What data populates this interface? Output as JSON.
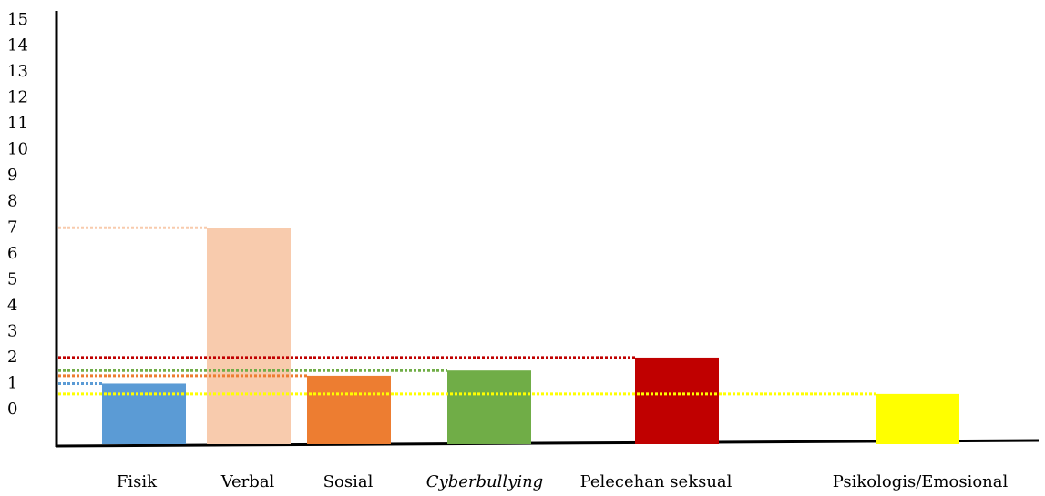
{
  "chart_data": {
    "type": "bar",
    "categories": [
      "Fisik",
      "Verbal",
      "Sosial",
      "Cyberbullying",
      "Pelecehan seksual",
      "Psikologis/Emosional"
    ],
    "values": [
      1,
      7,
      1.3,
      1.5,
      2,
      0.6
    ],
    "colors": [
      "#5b9bd5",
      "#f8cbad",
      "#ed7d31",
      "#70ad47",
      "#c00000",
      "#ffff00"
    ],
    "ylim": [
      0,
      15
    ],
    "yticks": [
      0,
      1,
      2,
      3,
      4,
      5,
      6,
      7,
      8,
      9,
      10,
      11,
      12,
      13,
      14,
      15
    ]
  }
}
